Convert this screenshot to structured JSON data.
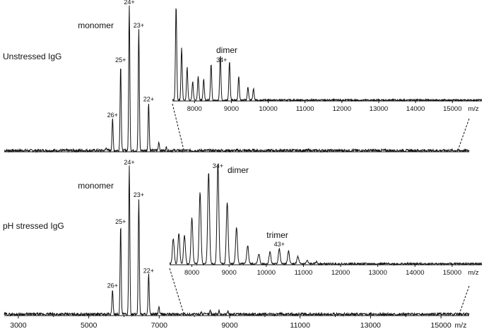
{
  "chart_data": [
    {
      "type": "line",
      "panel": "upper-main",
      "sample_label": "Unstressed IgG",
      "xlabel": "",
      "ylabel": "",
      "xlim": [
        2600,
        15800
      ],
      "annotations": [
        {
          "text": "monomer",
          "x": 5200
        },
        {
          "text": "24+",
          "x": 6150
        },
        {
          "text": "23+",
          "x": 6420
        },
        {
          "text": "25+",
          "x": 5905
        },
        {
          "text": "22+",
          "x": 6700
        },
        {
          "text": "26+",
          "x": 5675
        }
      ],
      "peaks": [
        {
          "x": 5675,
          "y": 0.22
        },
        {
          "x": 5905,
          "y": 0.6
        },
        {
          "x": 6150,
          "y": 1.0
        },
        {
          "x": 6420,
          "y": 0.84
        },
        {
          "x": 6700,
          "y": 0.33
        },
        {
          "x": 6990,
          "y": 0.06
        },
        {
          "x": 5500,
          "y": 0.02
        },
        {
          "x": 7200,
          "y": 0.02
        }
      ]
    },
    {
      "type": "line",
      "panel": "upper-inset",
      "title": "dimer",
      "xlabel": "m/z",
      "xlim": [
        7400,
        15800
      ],
      "xticks": [
        8000,
        9000,
        10000,
        11000,
        12000,
        13000,
        14000,
        15000
      ],
      "annotations": [
        {
          "text": "34+",
          "x": 8700
        }
      ],
      "peaks": [
        {
          "x": 7500,
          "y": 1.0
        },
        {
          "x": 7650,
          "y": 0.55
        },
        {
          "x": 7800,
          "y": 0.35
        },
        {
          "x": 7950,
          "y": 0.2
        },
        {
          "x": 8100,
          "y": 0.25
        },
        {
          "x": 8250,
          "y": 0.22
        },
        {
          "x": 8450,
          "y": 0.38
        },
        {
          "x": 8700,
          "y": 0.48
        },
        {
          "x": 8950,
          "y": 0.41
        },
        {
          "x": 9200,
          "y": 0.25
        },
        {
          "x": 9450,
          "y": 0.14
        },
        {
          "x": 9600,
          "y": 0.12
        }
      ]
    },
    {
      "type": "line",
      "panel": "lower-main",
      "sample_label": "pH stressed IgG",
      "xlabel": "m/z",
      "xlim": [
        2600,
        15800
      ],
      "xticks": [
        3000,
        5000,
        7000,
        9000,
        11000,
        13000,
        15000
      ],
      "annotations": [
        {
          "text": "monomer",
          "x": 5200
        },
        {
          "text": "24+",
          "x": 6150
        },
        {
          "text": "23+",
          "x": 6420
        },
        {
          "text": "25+",
          "x": 5905
        },
        {
          "text": "22+",
          "x": 6700
        },
        {
          "text": "26+",
          "x": 5675
        }
      ],
      "peaks": [
        {
          "x": 5675,
          "y": 0.17
        },
        {
          "x": 5905,
          "y": 0.6
        },
        {
          "x": 6150,
          "y": 1.0
        },
        {
          "x": 6420,
          "y": 0.78
        },
        {
          "x": 6700,
          "y": 0.27
        },
        {
          "x": 6990,
          "y": 0.05
        },
        {
          "x": 8200,
          "y": 0.02
        },
        {
          "x": 8450,
          "y": 0.025
        },
        {
          "x": 8700,
          "y": 0.025
        },
        {
          "x": 8950,
          "y": 0.02
        }
      ]
    },
    {
      "type": "line",
      "panel": "lower-inset",
      "title": "dimer",
      "xlabel": "m/z",
      "xlim": [
        7400,
        15800
      ],
      "xticks": [
        8000,
        9000,
        10000,
        11000,
        12000,
        13000,
        14000,
        15000
      ],
      "annotations": [
        {
          "text": "34+",
          "x": 8700
        },
        {
          "text": "trimer",
          "x": 10300
        },
        {
          "text": "43+",
          "x": 10350
        }
      ],
      "peaks": [
        {
          "x": 7500,
          "y": 0.25
        },
        {
          "x": 7650,
          "y": 0.3
        },
        {
          "x": 7800,
          "y": 0.28
        },
        {
          "x": 8000,
          "y": 0.45
        },
        {
          "x": 8220,
          "y": 0.7
        },
        {
          "x": 8450,
          "y": 0.9
        },
        {
          "x": 8700,
          "y": 0.98
        },
        {
          "x": 8950,
          "y": 0.6
        },
        {
          "x": 9200,
          "y": 0.36
        },
        {
          "x": 9500,
          "y": 0.18
        },
        {
          "x": 9800,
          "y": 0.1
        },
        {
          "x": 10100,
          "y": 0.12
        },
        {
          "x": 10350,
          "y": 0.15
        },
        {
          "x": 10600,
          "y": 0.12
        },
        {
          "x": 10850,
          "y": 0.07
        },
        {
          "x": 11100,
          "y": 0.03
        },
        {
          "x": 11350,
          "y": 0.02
        }
      ]
    }
  ]
}
